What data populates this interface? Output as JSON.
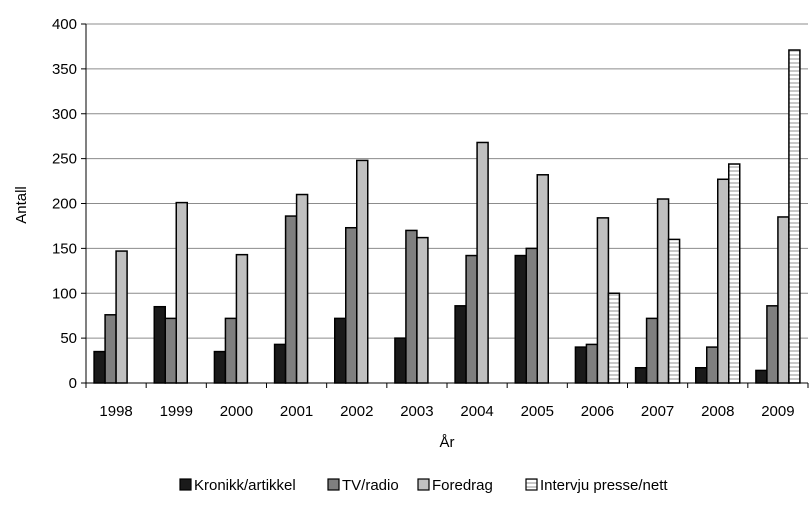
{
  "chart_data": {
    "type": "bar",
    "categories": [
      "1998",
      "1999",
      "2000",
      "2001",
      "2002",
      "2003",
      "2004",
      "2005",
      "2006",
      "2007",
      "2008",
      "2009"
    ],
    "series": [
      {
        "name": "Kronikk/artikkel",
        "values": [
          35,
          85,
          35,
          43,
          72,
          50,
          86,
          142,
          40,
          17,
          17,
          14
        ],
        "color": "#1a1a1a",
        "pattern": "solid"
      },
      {
        "name": "TV/radio",
        "values": [
          76,
          72,
          72,
          186,
          173,
          170,
          142,
          150,
          43,
          72,
          40,
          86
        ],
        "color": "#7f7f7f",
        "pattern": "solid"
      },
      {
        "name": "Foredrag",
        "values": [
          147,
          201,
          143,
          210,
          248,
          162,
          268,
          232,
          184,
          205,
          227,
          185
        ],
        "color": "#c0c0c0",
        "pattern": "solid"
      },
      {
        "name": "Intervju presse/nett",
        "values": [
          0,
          0,
          0,
          0,
          0,
          0,
          0,
          0,
          100,
          160,
          244,
          371
        ],
        "color": "#ffffff",
        "pattern": "horizontal-stripes"
      }
    ],
    "title": "",
    "xlabel": "År",
    "ylabel": "Antall",
    "ylim": [
      0,
      400
    ],
    "yticks": [
      0,
      50,
      100,
      150,
      200,
      250,
      300,
      350,
      400
    ],
    "grid": "horizontal",
    "legend_position": "bottom"
  }
}
